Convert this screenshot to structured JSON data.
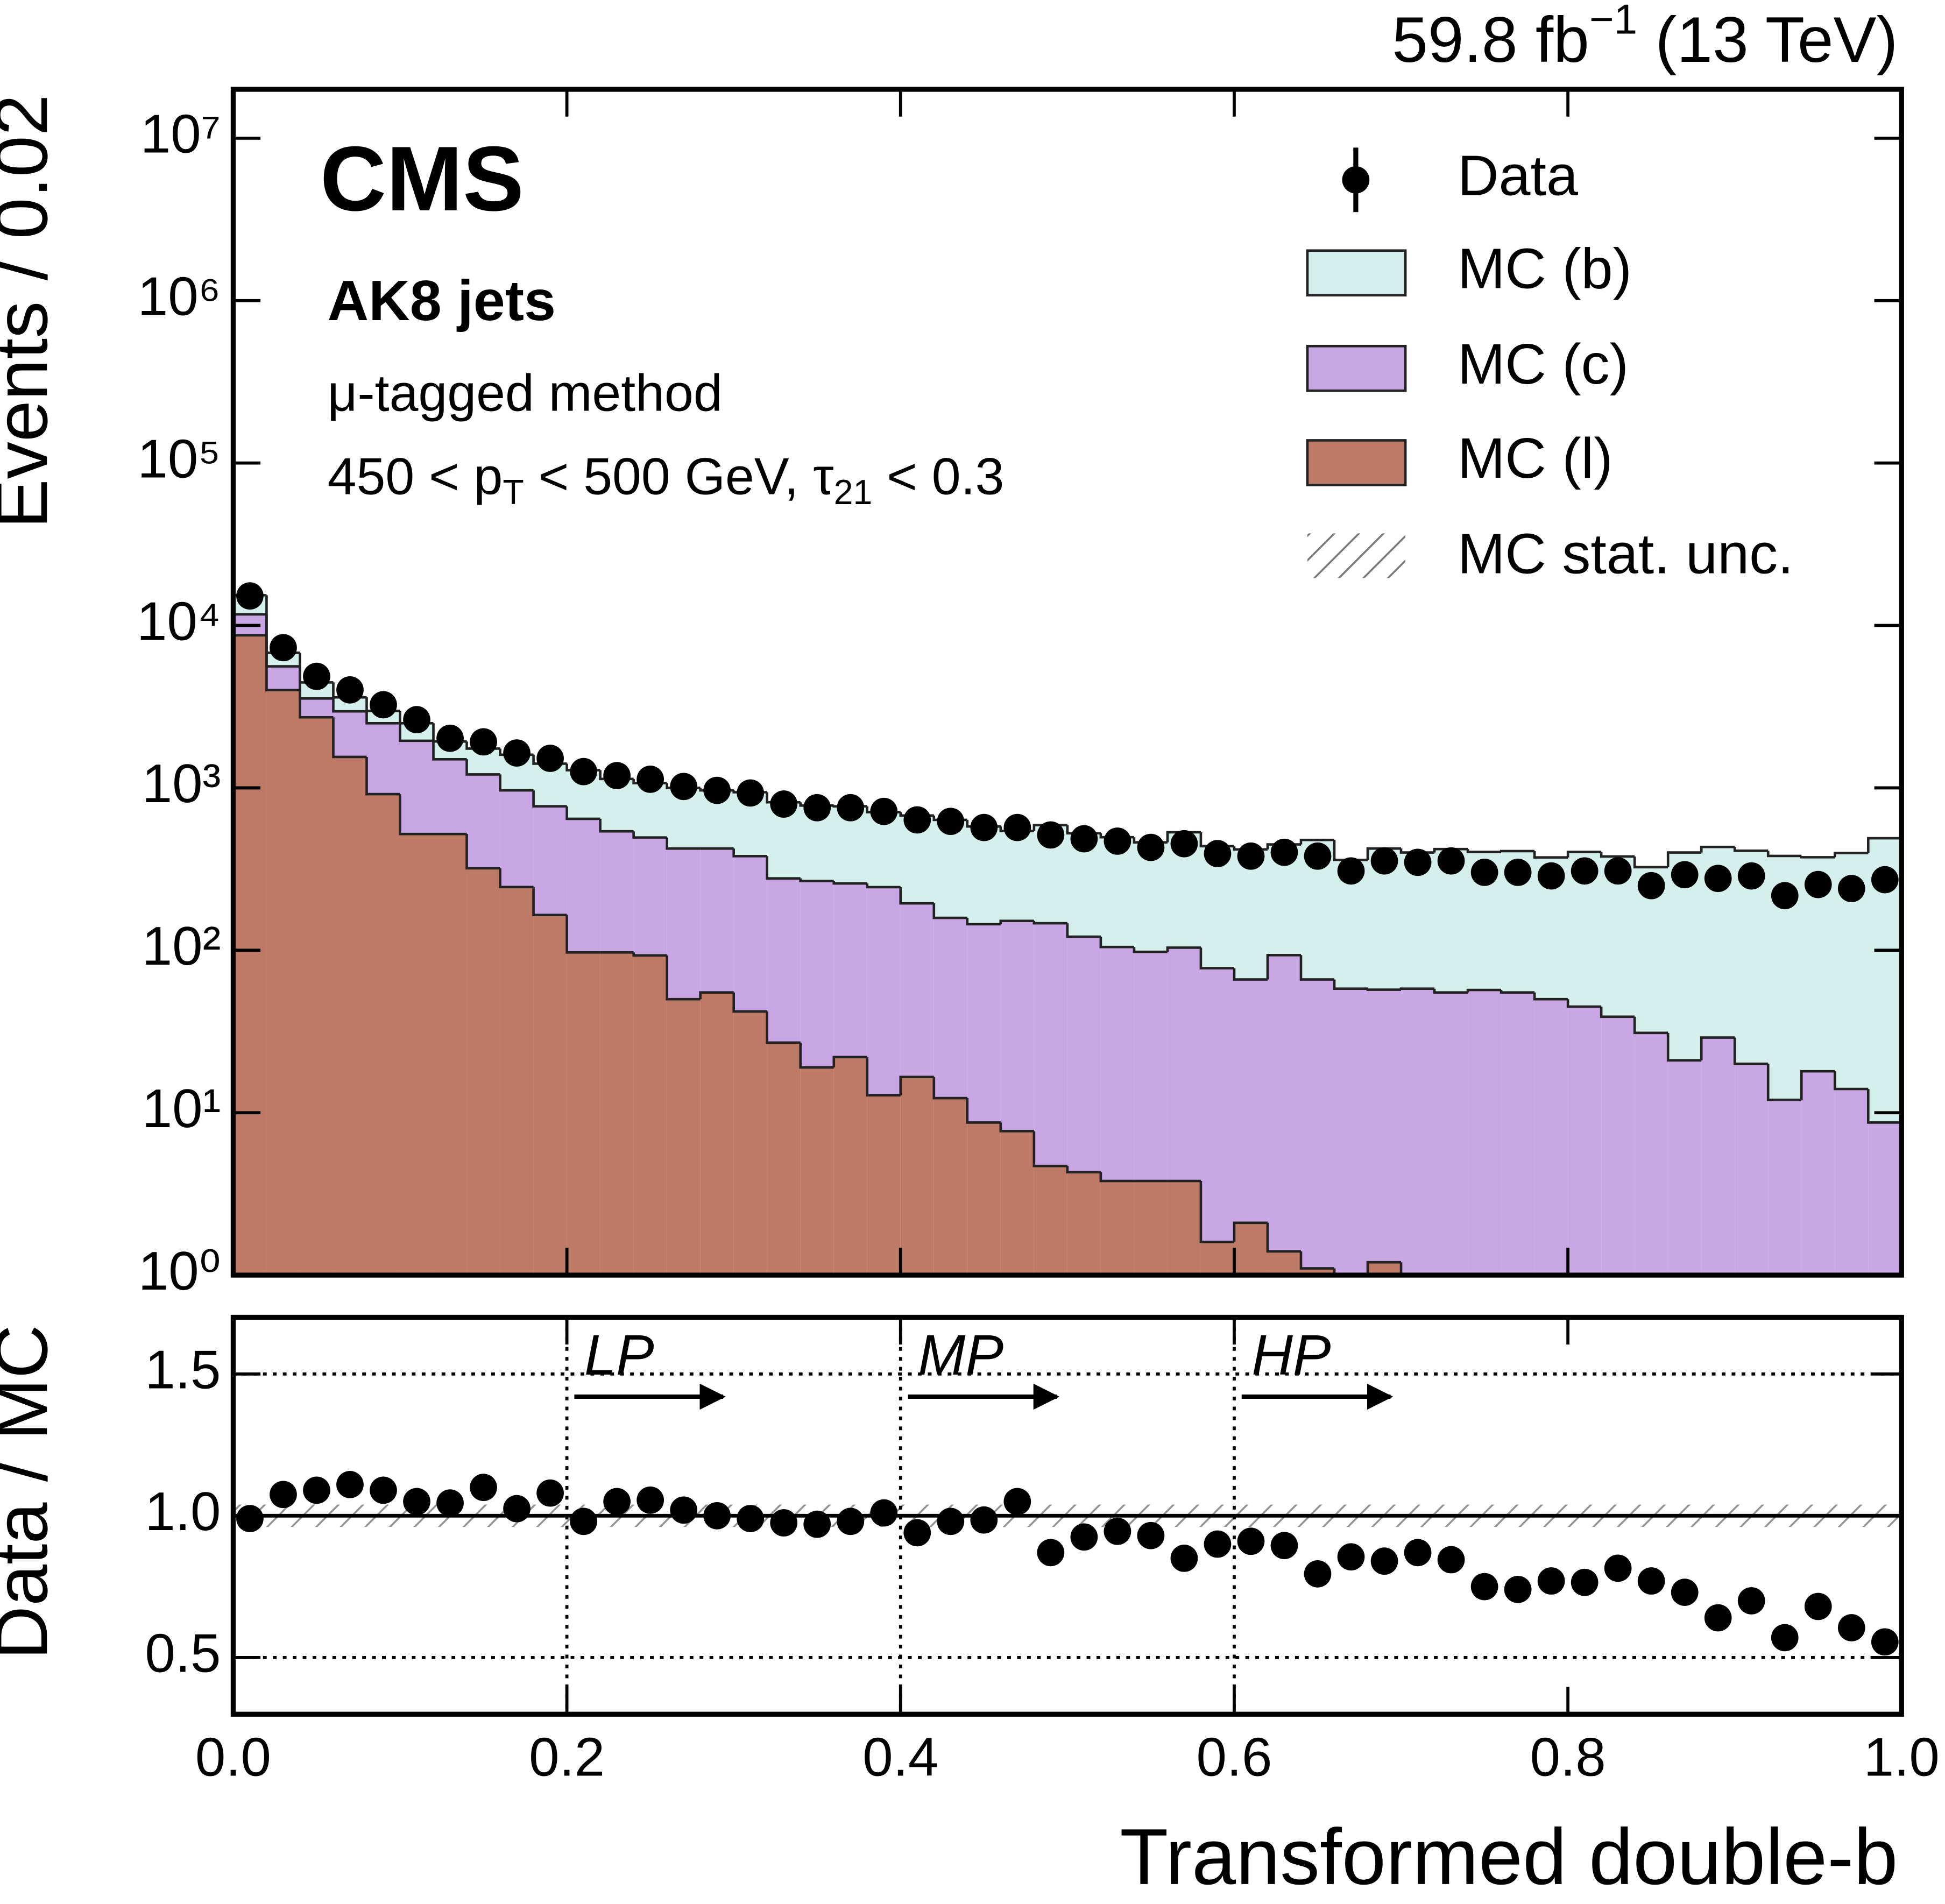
{
  "chart_data": [
    {
      "type": "histogram",
      "stacked": true,
      "title": [
        "59.8 fb",
        "−1",
        " (13 TeV)"
      ],
      "experiment": "CMS",
      "jets": "AK8 jets",
      "method": "μ-tagged method",
      "selection": [
        "450 < p",
        "T",
        " < 500 GeV, τ",
        "21",
        " < 0.3"
      ],
      "ylabel": "Events / 0.02",
      "bins": [
        0,
        0.02,
        0.04,
        0.06,
        0.08,
        0.1,
        0.12,
        0.14,
        0.16,
        0.18,
        0.2,
        0.22,
        0.24,
        0.26,
        0.28,
        0.3,
        0.32,
        0.34,
        0.36,
        0.38,
        0.4,
        0.42,
        0.44,
        0.46,
        0.48,
        0.5,
        0.52,
        0.54,
        0.56,
        0.58,
        0.6,
        0.62,
        0.64,
        0.66,
        0.68,
        0.7,
        0.72,
        0.74,
        0.76,
        0.78,
        0.8,
        0.82,
        0.84,
        0.86,
        0.88,
        0.9,
        0.92,
        0.94,
        0.96,
        0.98,
        1
      ],
      "data": {
        "name": "Data",
        "color": "#000000",
        "values": [
          15200,
          7300,
          4860,
          4010,
          3250,
          2630,
          2020,
          1920,
          1640,
          1520,
          1260,
          1190,
          1130,
          1020,
          965,
          930,
          795,
          755,
          755,
          716,
          635,
          622,
          570,
          570,
          513,
          486,
          470,
          430,
          453,
          394,
          380,
          401,
          380,
          308,
          355,
          348,
          355,
          302,
          302,
          287,
          308,
          308,
          250,
          292,
          277,
          287,
          217,
          254,
          240,
          272
        ]
      },
      "series": [
        {
          "name": "MC (b)",
          "color": "#d5efed",
          "values": [
            3650,
            1190,
            910,
            650,
            480,
            550,
            430,
            535,
            635,
            640,
            640,
            595,
            575,
            577,
            542,
            560,
            538,
            511,
            512,
            464,
            481,
            477,
            434,
            391,
            443,
            404,
            392,
            364,
            429,
            360,
            352,
            355,
            412,
            302,
            366,
            342,
            365,
            346,
            353,
            323,
            358,
            339,
            294,
            379,
            404,
            390,
            369,
            356,
            383,
            481
          ]
        },
        {
          "name": "MC (c)",
          "color": "#c9a6e4",
          "values": [
            3000,
            1600,
            830,
            1410,
            1585,
            1430,
            980,
            890,
            720,
            605,
            548,
            443,
            402,
            373,
            368,
            338,
            250,
            248,
            236,
            232,
            178,
            146,
            136,
            144,
            142,
            117,
            101,
            94,
            100,
            76,
            64,
            92,
            65,
            57,
            56,
            58,
            55,
            57,
            55,
            50,
            45,
            38,
            31,
            21,
            29,
            20,
            12,
            18,
            14,
            8.7
          ]
        },
        {
          "name": "MC (l)",
          "color": "#bc7a67",
          "values": [
            8700,
            4000,
            2720,
            1550,
            915,
            520,
            520,
            320,
            245,
            165,
            97,
            97,
            93,
            50,
            55,
            42,
            27,
            19,
            22,
            12.8,
            16.6,
            12.3,
            8.7,
            7.7,
            4.7,
            4.3,
            3.8,
            3.8,
            3.8,
            1.6,
            2.1,
            1.4,
            1.1,
            1.0,
            1.2,
            0,
            0,
            0,
            0,
            0,
            0,
            1.0,
            0,
            0,
            0,
            0,
            0,
            0,
            0,
            0
          ]
        }
      ],
      "uncertainty_label": "MC stat. unc.",
      "xlim": [
        0,
        1
      ],
      "ylim": [
        1,
        20000000
      ],
      "log_y": true,
      "yticks": [
        {
          "value": 1,
          "label": "10⁰"
        },
        {
          "value": 10,
          "label": "10¹"
        },
        {
          "value": 100,
          "label": "10²"
        },
        {
          "value": 1000,
          "label": "10³"
        },
        {
          "value": 10000,
          "label": "10⁴"
        },
        {
          "value": 100000,
          "label": "10⁵"
        },
        {
          "value": 1000000,
          "label": "10⁶"
        },
        {
          "value": 10000000,
          "label": "10⁷"
        }
      ],
      "xticks": [
        0,
        0.2,
        0.4,
        0.6,
        0.8,
        1
      ]
    },
    {
      "type": "scatter",
      "ylabel": "Data / MC",
      "xlabel": "Transformed double-b",
      "color": "#000000",
      "x": [
        0.01,
        0.03,
        0.05,
        0.07,
        0.09,
        0.11,
        0.13,
        0.15,
        0.17,
        0.19,
        0.21,
        0.23,
        0.25,
        0.27,
        0.29,
        0.31,
        0.33,
        0.35,
        0.37,
        0.39,
        0.41,
        0.43,
        0.45,
        0.47,
        0.49,
        0.51,
        0.53,
        0.55,
        0.57,
        0.59,
        0.61,
        0.63,
        0.65,
        0.67,
        0.69,
        0.71,
        0.73,
        0.75,
        0.77,
        0.79,
        0.81,
        0.83,
        0.85,
        0.87,
        0.89,
        0.91,
        0.93,
        0.95,
        0.97,
        0.99
      ],
      "values": [
        0.99,
        1.075,
        1.09,
        1.11,
        1.09,
        1.05,
        1.045,
        1.1,
        1.025,
        1.08,
        0.98,
        1.05,
        1.055,
        1.02,
        1.0,
        0.99,
        0.975,
        0.97,
        0.98,
        1.01,
        0.94,
        0.98,
        0.985,
        1.05,
        0.87,
        0.925,
        0.945,
        0.93,
        0.85,
        0.9,
        0.91,
        0.895,
        0.795,
        0.855,
        0.84,
        0.87,
        0.845,
        0.75,
        0.74,
        0.77,
        0.765,
        0.815,
        0.77,
        0.73,
        0.64,
        0.7,
        0.57,
        0.68,
        0.605,
        0.555
      ],
      "reference": 1,
      "annotations": [
        {
          "text": "LP",
          "x": 0.2
        },
        {
          "text": "MP",
          "x": 0.4
        },
        {
          "text": "HP",
          "x": 0.6
        }
      ],
      "xlim": [
        0,
        1
      ],
      "ylim": [
        0.3,
        1.7
      ],
      "yticks": [
        0.5,
        {
          "value": 1,
          "label": "1.0"
        },
        1.5
      ],
      "xticks": [
        {
          "value": 0,
          "label": "0.0"
        },
        0.2,
        0.4,
        0.6,
        0.8,
        {
          "value": 1,
          "label": "1.0"
        }
      ],
      "grid": true
    }
  ]
}
